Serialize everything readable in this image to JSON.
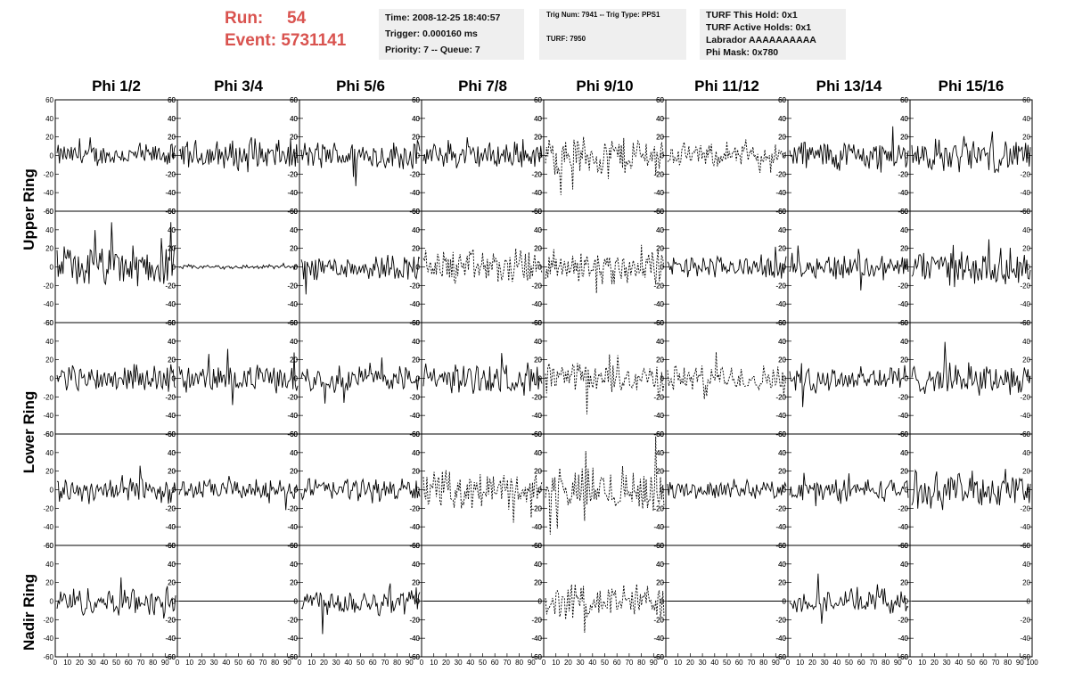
{
  "run_info": {
    "run_label": "Run:",
    "run_value": "54",
    "event_label": "Event:",
    "event_value": "5731141"
  },
  "trigger_info": {
    "time": "Time: 2008-12-25 18:40:57",
    "trigger": "Trigger: 0.000160 ms",
    "priority": "Priority: 7 -- Queue: 7"
  },
  "trig_num_info": {
    "trig": "Trig Num: 7941 -- Trig Type: PPS1",
    "turf": "TURF: 7950"
  },
  "turf_info": {
    "this_hold": "TURF This Hold: 0x1",
    "active_holds": "TURF Active Holds: 0x1",
    "labrador": "Labrador AAAAAAAAAA",
    "phi_mask": "Phi Mask: 0x780"
  },
  "columns": [
    "Phi 1/2",
    "Phi 3/4",
    "Phi 5/6",
    "Phi 7/8",
    "Phi 9/10",
    "Phi 11/12",
    "Phi 13/14",
    "Phi 15/16"
  ],
  "ring_labels": {
    "upper": "Upper Ring",
    "lower": "Lower Ring",
    "nadir": "Nadir Ring"
  },
  "colors": {
    "run_text": "#d9534f",
    "info_bg": "#efefef",
    "trace": "#000000"
  },
  "chart_data": {
    "type": "line",
    "description": "Grid of waveform traces, 5 rows x 8 columns, each x 0-100, y -60..60",
    "xlim": [
      0,
      100
    ],
    "ylim": [
      -60,
      60
    ],
    "y_ticks": [
      -60,
      -40,
      -20,
      0,
      20,
      40,
      60
    ],
    "x_ticks": [
      0,
      10,
      20,
      30,
      40,
      50,
      60,
      70,
      80,
      90,
      100
    ],
    "x_tick_labels_row": [
      "0",
      "10",
      "20",
      "30",
      "40",
      "50",
      "60",
      "70",
      "80",
      "90",
      "100"
    ],
    "rows": 5,
    "cols": 8,
    "panels": [
      [
        {
          "amp": 10,
          "style": "solid"
        },
        {
          "amp": 14,
          "style": "solid"
        },
        {
          "amp": 13,
          "style": "solid"
        },
        {
          "amp": 12,
          "style": "solid"
        },
        {
          "amp": 18,
          "style": "dashed"
        },
        {
          "amp": 10,
          "style": "dashed"
        },
        {
          "amp": 14,
          "style": "solid"
        },
        {
          "amp": 15,
          "style": "solid"
        }
      ],
      [
        {
          "amp": 19,
          "style": "solid"
        },
        {
          "amp": 2,
          "style": "solid"
        },
        {
          "amp": 12,
          "style": "solid"
        },
        {
          "amp": 16,
          "style": "dashed"
        },
        {
          "amp": 16,
          "style": "dashed"
        },
        {
          "amp": 10,
          "style": "solid"
        },
        {
          "amp": 12,
          "style": "solid"
        },
        {
          "amp": 16,
          "style": "solid"
        }
      ],
      [
        {
          "amp": 12,
          "style": "solid"
        },
        {
          "amp": 12,
          "style": "solid"
        },
        {
          "amp": 12,
          "style": "solid"
        },
        {
          "amp": 14,
          "style": "solid"
        },
        {
          "amp": 14,
          "style": "dashed"
        },
        {
          "amp": 12,
          "style": "dashed"
        },
        {
          "amp": 13,
          "style": "solid"
        },
        {
          "amp": 14,
          "style": "solid"
        }
      ],
      [
        {
          "amp": 12,
          "style": "solid"
        },
        {
          "amp": 9,
          "style": "solid"
        },
        {
          "amp": 11,
          "style": "solid"
        },
        {
          "amp": 16,
          "style": "dashed"
        },
        {
          "amp": 20,
          "style": "dashed"
        },
        {
          "amp": 8,
          "style": "solid"
        },
        {
          "amp": 10,
          "style": "solid"
        },
        {
          "amp": 16,
          "style": "solid"
        }
      ],
      [
        {
          "amp": 13,
          "style": "solid"
        },
        {
          "amp": 0,
          "style": "flat"
        },
        {
          "amp": 13,
          "style": "solid"
        },
        {
          "amp": 0,
          "style": "flat"
        },
        {
          "amp": 16,
          "style": "dashed"
        },
        {
          "amp": 0,
          "style": "flat"
        },
        {
          "amp": 11,
          "style": "solid"
        },
        {
          "amp": 0,
          "style": "flat"
        }
      ]
    ]
  }
}
